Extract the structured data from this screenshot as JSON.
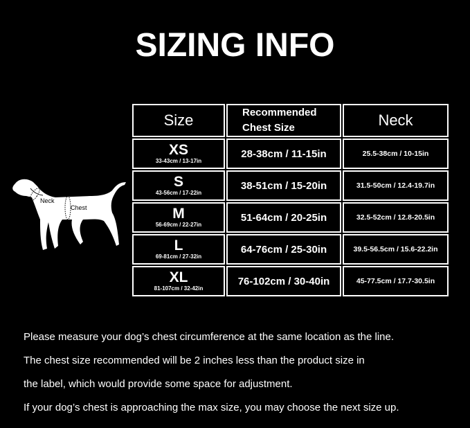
{
  "title": "SIZING INFO",
  "diagram": {
    "neck_label": "Neck",
    "chest_label": "Chest"
  },
  "table": {
    "headers": {
      "size": "Size",
      "chest": "Recommended Chest Size",
      "neck": "Neck"
    },
    "rows": [
      {
        "size": "XS",
        "range": "33-43cm / 13-17in",
        "chest": "28-38cm / 11-15in",
        "neck": "25.5-38cm / 10-15in"
      },
      {
        "size": "S",
        "range": "43-56cm / 17-22in",
        "chest": "38-51cm / 15-20in",
        "neck": "31.5-50cm / 12.4-19.7in"
      },
      {
        "size": "M",
        "range": "56-69cm / 22-27in",
        "chest": "51-64cm / 20-25in",
        "neck": "32.5-52cm / 12.8-20.5in"
      },
      {
        "size": "L",
        "range": "69-81cm / 27-32in",
        "chest": "64-76cm / 25-30in",
        "neck": "39.5-56.5cm / 15.6-22.2in"
      },
      {
        "size": "XL",
        "range": "81-107cm / 32-42in",
        "chest": "76-102cm / 30-40in",
        "neck": "45-77.5cm / 17.7-30.5in"
      }
    ]
  },
  "notes": [
    "Please measure your dog’s chest circumference at the same location as the line.",
    "The chest size recommended will be 2 inches less than the product size in",
    "the label, which would provide some space for adjustment.",
    "If your dog’s chest is approaching the max size, you may choose the next size up."
  ]
}
